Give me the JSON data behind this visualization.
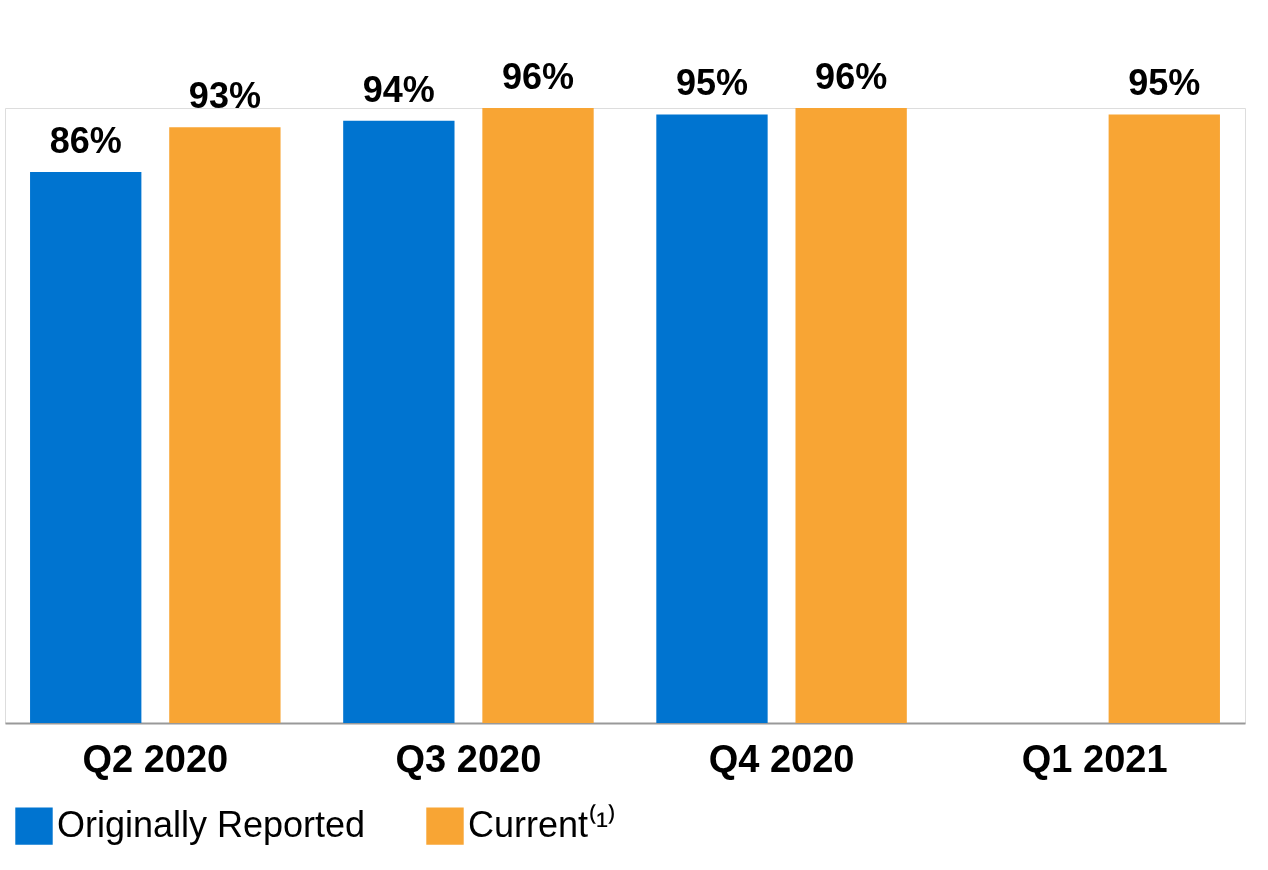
{
  "chart_data": {
    "type": "bar",
    "categories": [
      "Q2 2020",
      "Q3 2020",
      "Q4 2020",
      "Q1 2021"
    ],
    "series": [
      {
        "name": "Originally Reported",
        "color": "#0074d0",
        "values": [
          86,
          94,
          95,
          null
        ],
        "value_labels": [
          "86%",
          "94%",
          "95%",
          null
        ]
      },
      {
        "name": "Current⁽¹⁾",
        "color": "#f8a534",
        "values": [
          93,
          96,
          96,
          95
        ],
        "value_labels": [
          "93%",
          "96%",
          "96%",
          "95%"
        ]
      }
    ],
    "legend": "bottom"
  }
}
